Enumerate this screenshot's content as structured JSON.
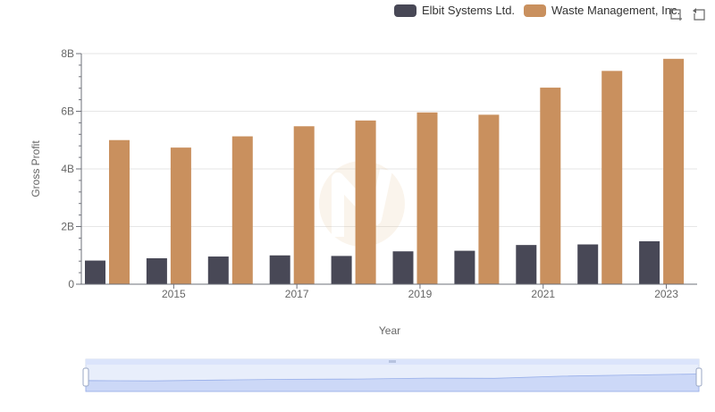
{
  "legend": {
    "items": [
      {
        "label": "Elbit Systems Ltd.",
        "color": "#484856"
      },
      {
        "label": "Waste Management, Inc.",
        "color": "#c9905e"
      }
    ]
  },
  "toolbar": {
    "icons": [
      "zoom-icon",
      "restore-icon"
    ]
  },
  "chart_data": {
    "type": "bar",
    "xlabel": "Year",
    "ylabel": "Gross Profit",
    "ylim": [
      0,
      8000000000
    ],
    "y_ticks": [
      "0",
      "2B",
      "4B",
      "6B",
      "8B"
    ],
    "x_tick_labels": [
      "2015",
      "2017",
      "2019",
      "2021",
      "2023"
    ],
    "categories": [
      "2014",
      "2015",
      "2016",
      "2017",
      "2018",
      "2019",
      "2020",
      "2021",
      "2022",
      "2023"
    ],
    "series": [
      {
        "name": "Elbit Systems Ltd.",
        "color": "#484856",
        "values": [
          820000000,
          900000000,
          960000000,
          1000000000,
          980000000,
          1140000000,
          1160000000,
          1360000000,
          1380000000,
          1490000000
        ]
      },
      {
        "name": "Waste Management, Inc.",
        "color": "#c9905e",
        "values": [
          5000000000,
          4740000000,
          5130000000,
          5480000000,
          5680000000,
          5960000000,
          5880000000,
          6820000000,
          7400000000,
          7820000000
        ]
      }
    ],
    "grid": true,
    "legend_position": "top-right",
    "data_zoom": true
  }
}
